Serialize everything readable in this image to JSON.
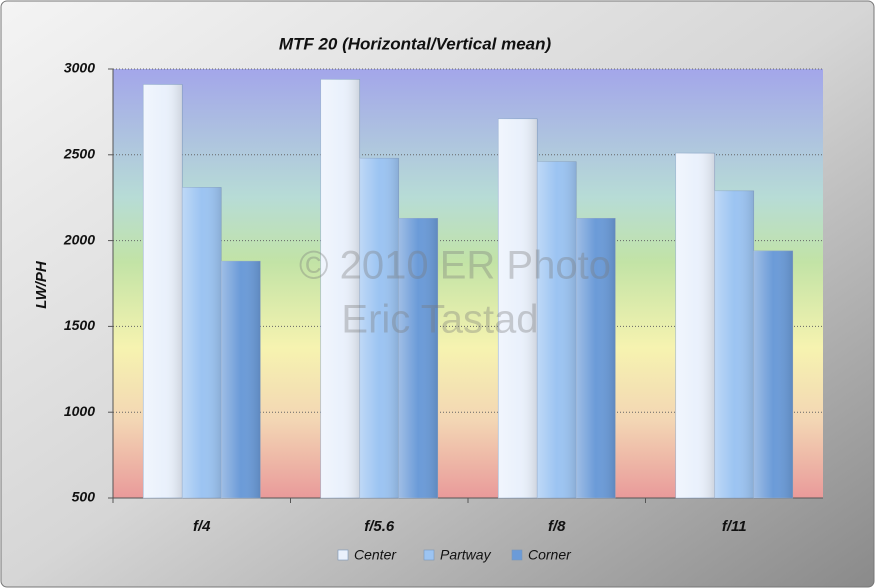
{
  "chart_data": {
    "type": "bar",
    "title": "MTF 20 (Horizontal/Vertical mean)",
    "y_label": "LW/PH",
    "watermark": [
      "© 2010 ER Photo",
      "Eric Tastad"
    ],
    "categories": [
      "f/4",
      "f/5.6",
      "f/8",
      "f/11"
    ],
    "series": [
      {
        "name": "Center",
        "color": "#eaf1fc",
        "values": [
          2910,
          2940,
          2710,
          2510
        ]
      },
      {
        "name": "Partway",
        "color": "#9cc4f2",
        "values": [
          2310,
          2480,
          2460,
          2290
        ]
      },
      {
        "name": "Corner",
        "color": "#6b9bd8",
        "values": [
          1880,
          2130,
          2130,
          1940
        ]
      }
    ],
    "ylim": [
      500,
      3000
    ],
    "yticks": [
      500,
      1000,
      1500,
      2000,
      2500,
      3000
    ],
    "grid": true,
    "legend": "bottom"
  }
}
